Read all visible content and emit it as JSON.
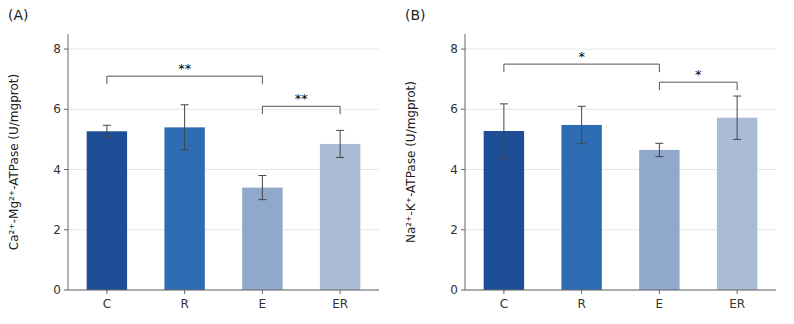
{
  "chart_data": [
    {
      "type": "bar",
      "title": "(A)",
      "categories": [
        "C",
        "R",
        "E",
        "ER"
      ],
      "values": [
        5.27,
        5.4,
        3.4,
        4.85
      ],
      "errors": [
        0.2,
        0.75,
        0.4,
        0.45
      ],
      "colors": [
        "#1e4f96",
        "#2e6db4",
        "#8fa8cc",
        "#aabbd6"
      ],
      "ylabel": "Ca²⁺-Mg²⁺-ATPase (U/mgprot)",
      "ylim": [
        0,
        8.5
      ],
      "yticks": [
        0,
        2,
        4,
        6,
        8
      ],
      "annotations": [
        {
          "from": "C",
          "to": "E",
          "y": 7.1,
          "label": "**"
        },
        {
          "from": "E",
          "to": "ER",
          "y": 6.1,
          "label": "**"
        }
      ]
    },
    {
      "type": "bar",
      "title": "(B)",
      "categories": [
        "C",
        "R",
        "E",
        "ER"
      ],
      "values": [
        5.28,
        5.48,
        4.65,
        5.72
      ],
      "errors": [
        0.9,
        0.62,
        0.22,
        0.72
      ],
      "colors": [
        "#1e4f96",
        "#2e6db4",
        "#8fa8cc",
        "#aabbd6"
      ],
      "ylabel": "Na²⁺-K⁺-ATPase (U/mgprot)",
      "ylim": [
        0,
        8.5
      ],
      "yticks": [
        0,
        2,
        4,
        6,
        8
      ],
      "annotations": [
        {
          "from": "C",
          "to": "E",
          "y": 7.5,
          "label": "*"
        },
        {
          "from": "E",
          "to": "ER",
          "y": 6.9,
          "label": "*"
        }
      ]
    }
  ]
}
